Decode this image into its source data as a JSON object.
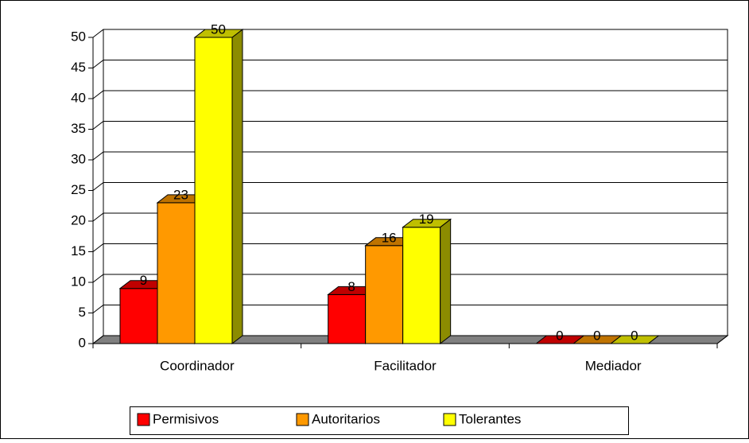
{
  "chart_data": {
    "type": "bar3d",
    "categories": [
      "Coordinador",
      "Facilitador",
      "Mediador"
    ],
    "series": [
      {
        "name": "Permisivos",
        "color": "#ff0000",
        "values": [
          9,
          8,
          0
        ]
      },
      {
        "name": "Autoritarios",
        "color": "#ff9900",
        "values": [
          23,
          16,
          0
        ]
      },
      {
        "name": "Tolerantes",
        "color": "#ffff00",
        "values": [
          50,
          19,
          0
        ]
      }
    ],
    "ylim": [
      0,
      50
    ],
    "yticks": [
      0,
      5,
      10,
      15,
      20,
      25,
      30,
      35,
      40,
      45,
      50
    ],
    "grid": true,
    "legend": "bottom"
  }
}
